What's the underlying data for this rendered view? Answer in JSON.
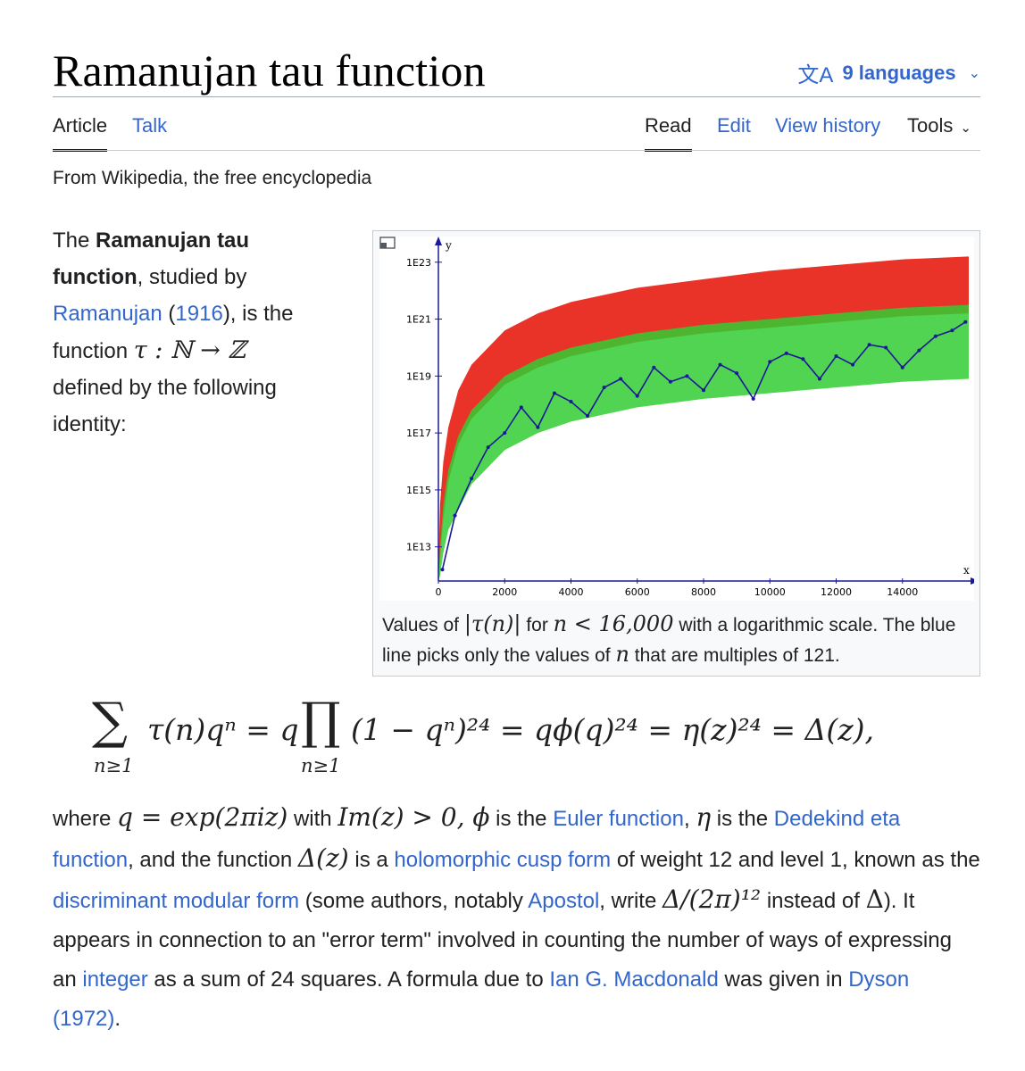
{
  "page": {
    "title": "Ramanujan tau function",
    "languages_label": "9 languages",
    "tagline": "From Wikipedia, the free encyclopedia"
  },
  "tabs": {
    "article": "Article",
    "talk": "Talk",
    "read": "Read",
    "edit": "Edit",
    "view_history": "View history",
    "tools": "Tools"
  },
  "lead": {
    "p1": "The ",
    "bold": "Ramanujan tau function",
    "p2": ", studied by ",
    "link_ramanujan": "Ramanujan",
    "paren_open": " (",
    "link_year": "1916",
    "p3": "), is the function ",
    "math_map": "τ : ℕ → ℤ",
    "p4": " defined by the following identity:"
  },
  "figure": {
    "caption_1": "Values of ",
    "caption_math_1": "|τ(n)|",
    "caption_2": " for ",
    "caption_math_2": "n < 16,000",
    "caption_3": " with a logarithmic scale. The blue line picks only the values of ",
    "caption_math_3": "n",
    "caption_4": " that are multiples of 121."
  },
  "chart_data": {
    "type": "scatter",
    "title": "",
    "xlabel": "x",
    "ylabel": "y",
    "x_ticks": [
      "0",
      "2000",
      "4000",
      "6000",
      "8000",
      "10000",
      "12000",
      "14000"
    ],
    "y_ticks": [
      "1E13",
      "1E15",
      "1E17",
      "1E19",
      "1E21",
      "1E23"
    ],
    "xlim": [
      0,
      16000
    ],
    "y_scale": "log",
    "ylim_log10": [
      11.8,
      23.4
    ],
    "series": [
      {
        "color": "#e8281c",
        "x": [
          1,
          50,
          150,
          300,
          600,
          1000,
          2000,
          3000,
          4000,
          6000,
          8000,
          10000,
          12000,
          14000,
          16000
        ],
        "upper_log10": [
          12.3,
          14.5,
          16.0,
          17.2,
          18.5,
          19.4,
          20.6,
          21.2,
          21.6,
          22.1,
          22.4,
          22.7,
          22.9,
          23.1,
          23.2
        ],
        "lower_log10": [
          11.8,
          12.6,
          14.0,
          15.3,
          16.6,
          17.5,
          18.7,
          19.3,
          19.7,
          20.2,
          20.5,
          20.7,
          20.9,
          21.1,
          21.2
        ]
      },
      {
        "color": "#33cc33",
        "x": [
          1,
          50,
          150,
          300,
          600,
          1000,
          2000,
          3000,
          4000,
          6000,
          8000,
          10000,
          12000,
          14000,
          16000
        ],
        "upper_log10": [
          11.8,
          13.0,
          14.5,
          15.7,
          16.9,
          17.8,
          19.0,
          19.6,
          20.0,
          20.5,
          20.8,
          21.0,
          21.2,
          21.4,
          21.5
        ],
        "lower_log10": [
          11.8,
          12.0,
          12.8,
          13.6,
          14.3,
          15.2,
          16.4,
          17.0,
          17.4,
          17.9,
          18.2,
          18.4,
          18.6,
          18.8,
          18.9
        ]
      },
      {
        "color": "#1a1a99",
        "x": [
          121,
          500,
          1000,
          1500,
          2000,
          2500,
          3000,
          3500,
          4000,
          4500,
          5000,
          5500,
          6000,
          6500,
          7000,
          7500,
          8000,
          8500,
          9000,
          9500,
          10000,
          10500,
          11000,
          11500,
          12000,
          12500,
          13000,
          13500,
          14000,
          14500,
          15000,
          15500,
          15900
        ],
        "y_log10": [
          12.2,
          14.1,
          15.4,
          16.5,
          17.0,
          17.9,
          17.2,
          18.4,
          18.1,
          17.6,
          18.6,
          18.9,
          18.3,
          19.3,
          18.8,
          19.0,
          18.5,
          19.4,
          19.1,
          18.2,
          19.5,
          19.8,
          19.6,
          18.9,
          19.7,
          19.4,
          20.1,
          20.0,
          19.3,
          19.9,
          20.4,
          20.6,
          20.9
        ]
      }
    ]
  },
  "formula": {
    "sum": "∑",
    "sum_sub": "n≥1",
    "t1": "τ(n)qⁿ = q",
    "prod": "∏",
    "prod_sub": "n≥1",
    "t2": "(1 − qⁿ)²⁴ = qϕ(q)²⁴ = η(z)²⁴ = Δ(z),"
  },
  "body": {
    "s1": "where ",
    "m1": "q = exp(2πiz)",
    "s2": " with ",
    "m2": "Im(z) > 0, ϕ",
    "s3": " is the ",
    "link_euler": "Euler function",
    "s4": ", ",
    "m3": "η",
    "s5": " is the ",
    "link_dedekind": "Dedekind eta function",
    "s6": ", and the function ",
    "m4": "Δ(z)",
    "s7": " is a ",
    "link_cusp": "holomorphic cusp form",
    "s8": " of weight 12 and level 1, known as the ",
    "link_disc": "discriminant modular form",
    "s9": " (some authors, notably ",
    "link_apostol": "Apostol",
    "s10": ", write ",
    "m5": "Δ/(2π)¹²",
    "s11": " instead of ",
    "m6": "Δ",
    "s12": "). It appears in connection to an \"error term\" involved in counting the number of ways of expressing an ",
    "link_integer": "integer",
    "s13": " as a sum of 24 squares. A formula due to ",
    "link_macdonald": "Ian G. Macdonald",
    "s14": " was given in ",
    "link_dyson": "Dyson (1972)",
    "s15": "."
  },
  "colors": {
    "link": "#3366cc",
    "text": "#202122",
    "rule": "#a2a9b1"
  }
}
